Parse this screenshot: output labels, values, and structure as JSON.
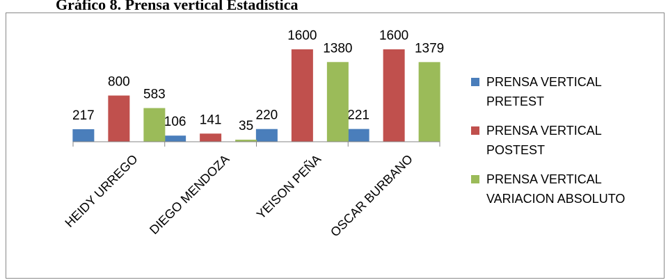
{
  "caption": "Gráfico 8.       Prensa vertical Estadística",
  "chart_data": {
    "type": "bar",
    "categories": [
      "HEIDY URREGO",
      "DIEGO MENDOZA",
      "YEISON PEÑA",
      "OSCAR BURBANO"
    ],
    "series": [
      {
        "name": "PRENSA VERTICAL PRETEST",
        "legend_lines": [
          "PRENSA VERTICAL",
          "PRETEST"
        ],
        "color": "#4a7ebb",
        "values": [
          217,
          106,
          220,
          221
        ]
      },
      {
        "name": "PRENSA VERTICAL POSTEST",
        "legend_lines": [
          "PRENSA VERTICAL",
          "POSTEST"
        ],
        "color": "#c0504d",
        "values": [
          800,
          141,
          1600,
          1600
        ]
      },
      {
        "name": "PRENSA VERTICAL VARIACION ABSOLUTO",
        "legend_lines": [
          "PRENSA VERTICAL",
          "VARIACION ABSOLUTO"
        ],
        "color": "#9bbb59",
        "values": [
          583,
          35,
          1380,
          1379
        ]
      }
    ],
    "ylim": [
      0,
      1600
    ],
    "grid": false,
    "legend": "right"
  }
}
